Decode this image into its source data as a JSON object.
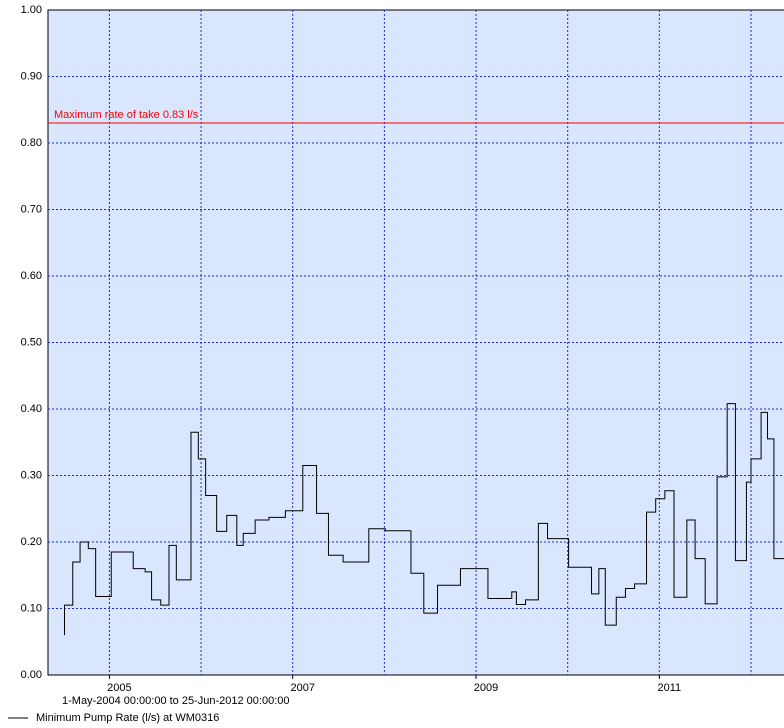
{
  "chart_data": {
    "type": "line",
    "subtitle": "1-May-2004 00:00:00 to 25-Jun-2012 00:00:00",
    "xlim": [
      2004.33,
      2012.48
    ],
    "xticks": [
      2005,
      2007,
      2009,
      2011
    ],
    "xgrid": [
      2005,
      2006,
      2007,
      2008,
      2009,
      2010,
      2011,
      2012
    ],
    "ylim": [
      0,
      1
    ],
    "yticks": [
      {
        "value": 0,
        "label": "0.00"
      },
      {
        "value": 0.1,
        "label": "0.10"
      },
      {
        "value": 0.2,
        "label": "0.20"
      },
      {
        "value": 0.3,
        "label": "0.30"
      },
      {
        "value": 0.4,
        "label": "0.40"
      },
      {
        "value": 0.5,
        "label": "0.50"
      },
      {
        "value": 0.6,
        "label": "0.60"
      },
      {
        "value": 0.7,
        "label": "0.70"
      },
      {
        "value": 0.8,
        "label": "0.80"
      },
      {
        "value": 0.9,
        "label": "0.90"
      },
      {
        "value": 1,
        "label": "1.00"
      }
    ],
    "grid": true,
    "background": "#d9e6fd",
    "step": true,
    "threshold": {
      "value": 0.83,
      "label": "Maximum rate of take 0.83 l/s",
      "color": "#ff0000"
    },
    "x": [
      2004.51,
      2004.51,
      2004.6,
      2004.68,
      2004.77,
      2004.85,
      2005.02,
      2005.26,
      2005.39,
      2005.46,
      2005.56,
      2005.65,
      2005.73,
      2005.89,
      2005.97,
      2006.05,
      2006.17,
      2006.28,
      2006.39,
      2006.46,
      2006.59,
      2006.74,
      2006.92,
      2007.11,
      2007.26,
      2007.39,
      2007.55,
      2007.83,
      2008.01,
      2008.29,
      2008.43,
      2008.58,
      2008.83,
      2009.13,
      2009.39,
      2009.44,
      2009.54,
      2009.68,
      2009.78,
      2010.01,
      2010.26,
      2010.34,
      2010.41,
      2010.53,
      2010.63,
      2010.73,
      2010.86,
      2010.96,
      2011.06,
      2011.16,
      2011.3,
      2011.39,
      2011.5,
      2011.63,
      2011.74,
      2011.83,
      2011.95,
      2012.0,
      2012.11,
      2012.18,
      2012.25,
      2012.48
    ],
    "series": [
      {
        "name": "Minimum Pump Rate (l/s) at WM0316",
        "color": "#000000",
        "values": [
          0.06,
          0.105,
          0.17,
          0.2,
          0.19,
          0.118,
          0.185,
          0.16,
          0.155,
          0.113,
          0.105,
          0.195,
          0.143,
          0.365,
          0.325,
          0.27,
          0.216,
          0.24,
          0.195,
          0.213,
          0.233,
          0.237,
          0.247,
          0.315,
          0.243,
          0.18,
          0.17,
          0.22,
          0.217,
          0.153,
          0.093,
          0.135,
          0.16,
          0.115,
          0.125,
          0.106,
          0.113,
          0.228,
          0.205,
          0.162,
          0.122,
          0.16,
          0.075,
          0.117,
          0.13,
          0.137,
          0.245,
          0.265,
          0.277,
          0.117,
          0.233,
          0.175,
          0.107,
          0.298,
          0.408,
          0.172,
          0.29,
          0.325,
          0.395,
          0.355,
          0.175,
          0.175
        ]
      }
    ]
  }
}
